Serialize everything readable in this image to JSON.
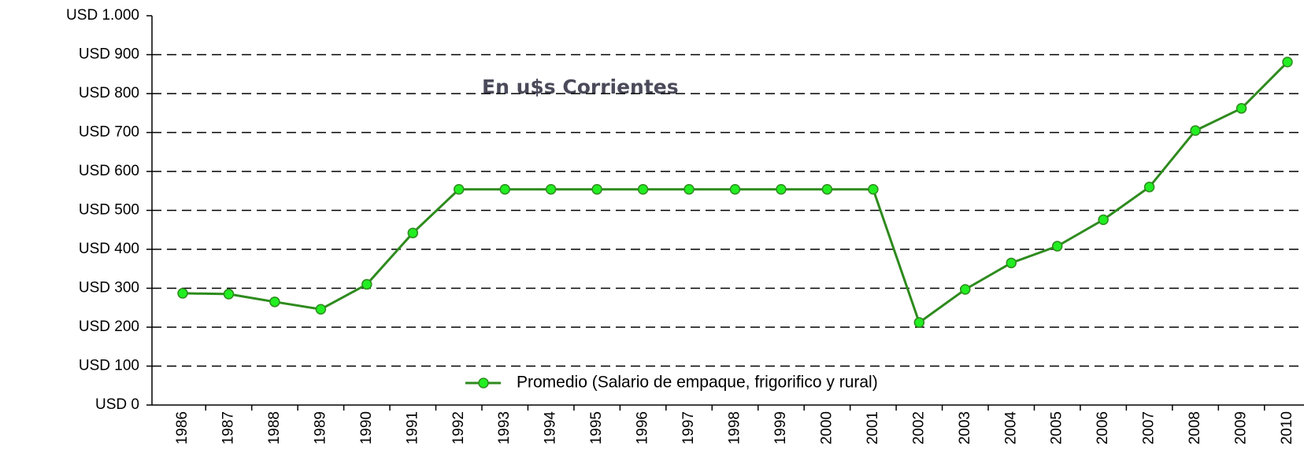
{
  "chart_data": {
    "type": "line",
    "annotation": "En u$s Corrientes",
    "categories": [
      "1986",
      "1987",
      "1988",
      "1989",
      "1990",
      "1991",
      "1992",
      "1993",
      "1994",
      "1995",
      "1996",
      "1997",
      "1998",
      "1999",
      "2000",
      "2001",
      "2002",
      "2003",
      "2004",
      "2005",
      "2006",
      "2007",
      "2008",
      "2009",
      "2010"
    ],
    "series": [
      {
        "name": "Promedio (Salario de empaque, frigorifico y rural)",
        "color": "#2e8b1e",
        "marker_color": "#22ee22",
        "values": [
          287,
          285,
          265,
          246,
          310,
          442,
          554,
          554,
          554,
          554,
          554,
          554,
          554,
          554,
          554,
          554,
          212,
          297,
          365,
          408,
          476,
          560,
          705,
          762,
          881
        ]
      }
    ],
    "ylim": [
      0,
      1000
    ],
    "yticks": [
      {
        "value": 0,
        "label": "USD 0"
      },
      {
        "value": 100,
        "label": "USD 100"
      },
      {
        "value": 200,
        "label": "USD 200"
      },
      {
        "value": 300,
        "label": "USD 300"
      },
      {
        "value": 400,
        "label": "USD 400"
      },
      {
        "value": 500,
        "label": "USD 500"
      },
      {
        "value": 600,
        "label": "USD 600"
      },
      {
        "value": 700,
        "label": "USD 700"
      },
      {
        "value": 800,
        "label": "USD 800"
      },
      {
        "value": 900,
        "label": "USD 900"
      },
      {
        "value": 1000,
        "label": "USD 1.000"
      }
    ],
    "grid": true
  }
}
